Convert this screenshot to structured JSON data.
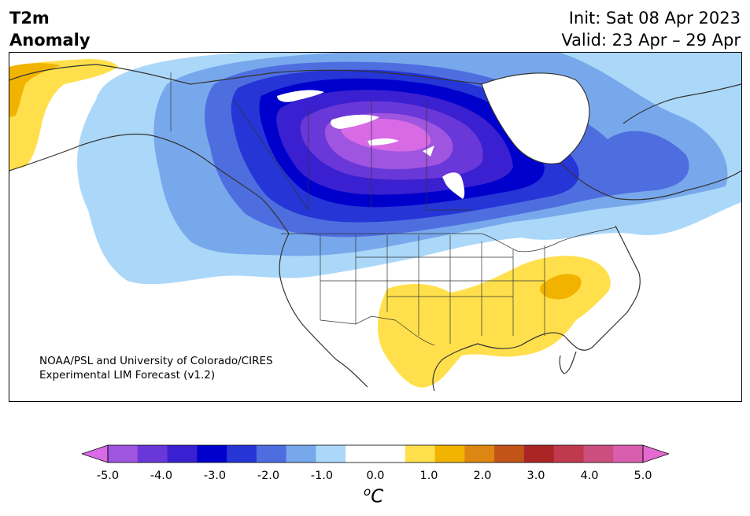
{
  "header": {
    "title_line1": "T2m",
    "title_line2": "Anomaly",
    "init": "Init: Sat 08 Apr 2023",
    "valid": "Valid: 23 Apr – 29 Apr"
  },
  "credit": {
    "line1": "NOAA/PSL and University of Colorado/CIRES",
    "line2": "Experimental LIM Forecast (v1.2)"
  },
  "colorbar": {
    "colors": [
      "#d86ae6",
      "#9f55e0",
      "#6a37d8",
      "#3a20d0",
      "#0000cc",
      "#2535d6",
      "#4e6ee0",
      "#78a8ec",
      "#abd8f9",
      "#ffffff",
      "#ffffff",
      "#ffe04c",
      "#f1b300",
      "#dd8612",
      "#c25418",
      "#ab2426",
      "#c03a4e",
      "#cc4e7e",
      "#da5eae",
      "#e46ad2"
    ],
    "ticks": [
      "-5.0",
      "-4.0",
      "-3.0",
      "-2.0",
      "-1.0",
      "0.0",
      "1.0",
      "2.0",
      "3.0",
      "4.0",
      "5.0"
    ],
    "unit_symbol": "o",
    "unit_letter": "C"
  }
}
